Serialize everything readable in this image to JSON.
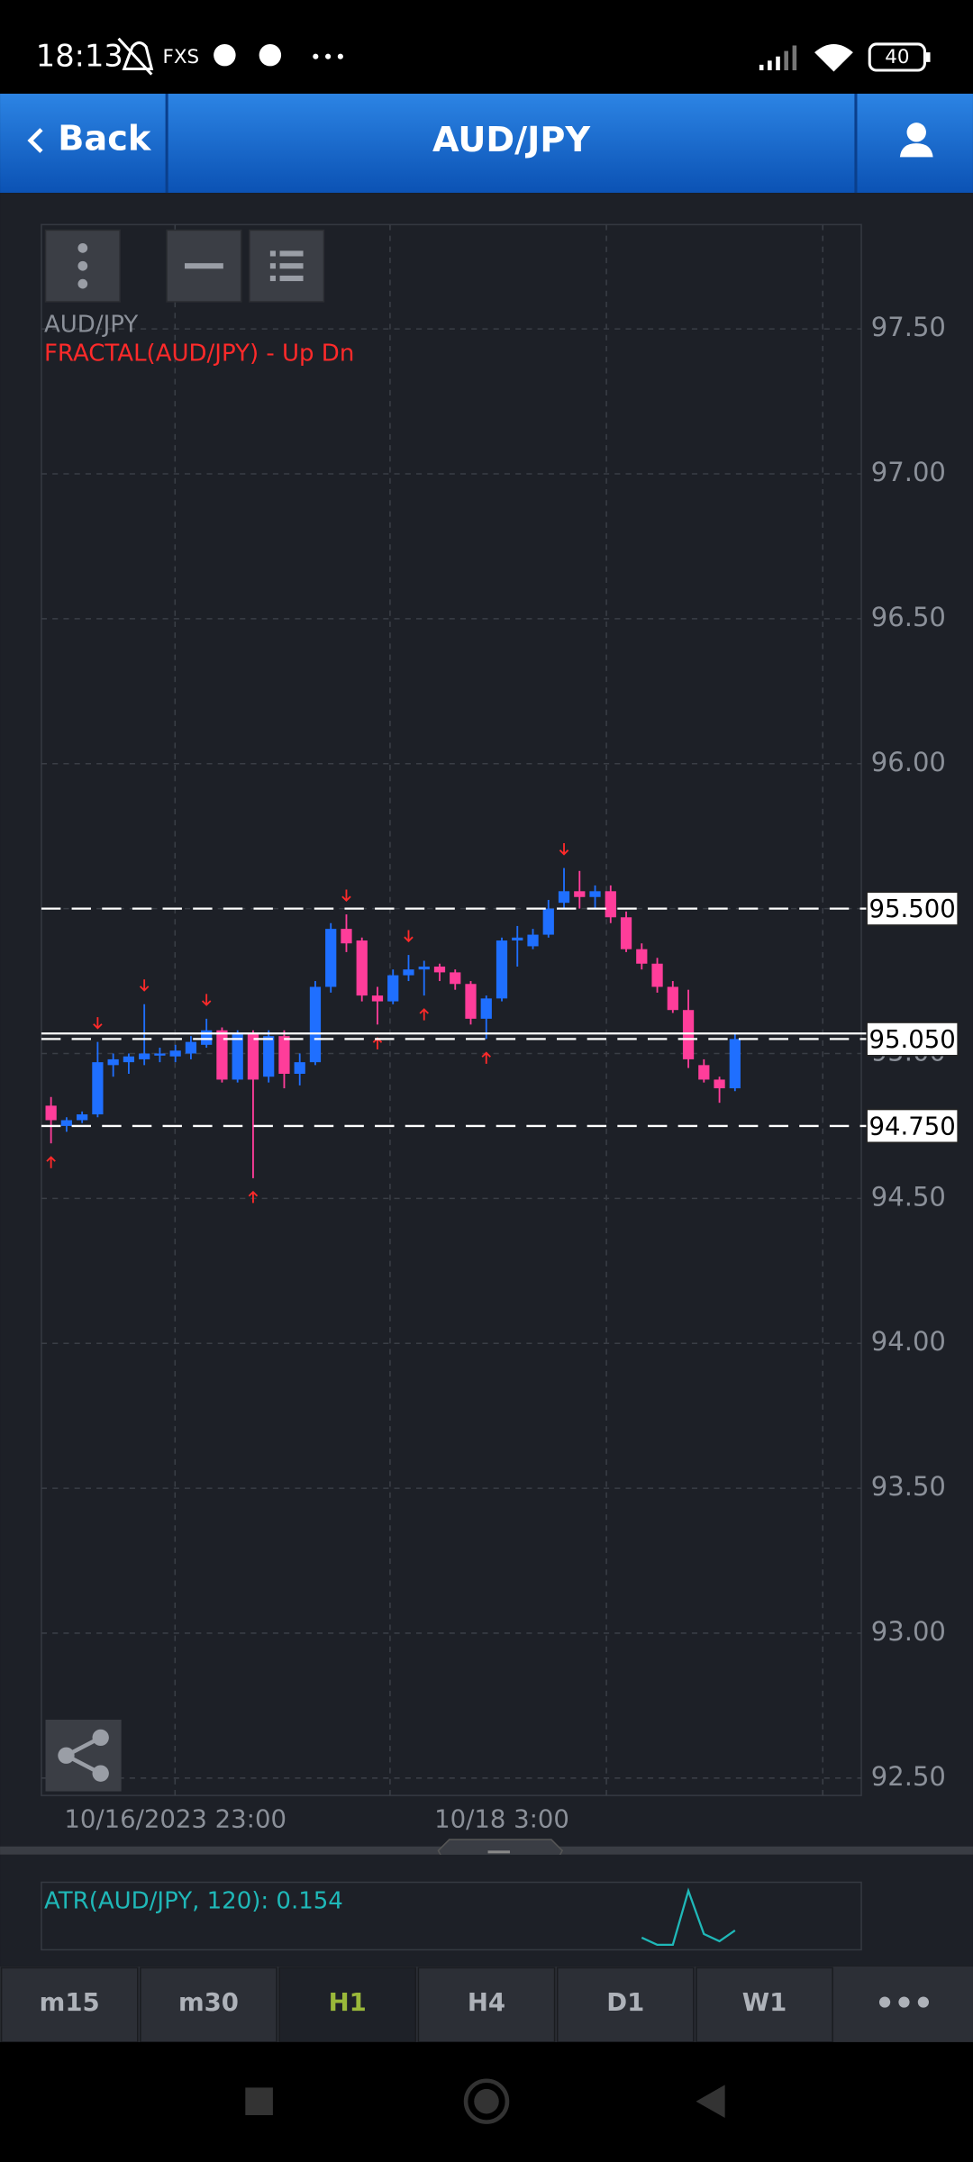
{
  "status_bar": {
    "time": "18:13",
    "carrier": "FXS",
    "battery": "40"
  },
  "header": {
    "back": "Back",
    "title": "AUD/JPY"
  },
  "chart_data": {
    "type": "candlestick",
    "symbol": "AUD/JPY",
    "indicator": "FRACTAL(AUD/JPY) - Up Dn",
    "categories": [
      null,
      null,
      null,
      null,
      null,
      null,
      null,
      null,
      "10/16/2023 23:00",
      null,
      null,
      null,
      null,
      null,
      null,
      null,
      null,
      null,
      null,
      null,
      null,
      null,
      null,
      null,
      null,
      null,
      null,
      null,
      null,
      "10/18 3:00",
      null,
      null,
      null,
      null,
      null,
      null,
      null,
      null,
      null,
      null,
      null,
      null,
      null,
      null,
      null
    ],
    "open": [
      94.82,
      94.75,
      94.77,
      94.79,
      94.96,
      94.97,
      94.98,
      95.0,
      94.99,
      95.0,
      95.03,
      95.08,
      94.91,
      95.07,
      94.92,
      95.06,
      94.93,
      94.97,
      95.23,
      95.43,
      95.39,
      95.2,
      95.18,
      95.27,
      95.29,
      95.3,
      95.28,
      95.24,
      95.12,
      95.19,
      95.39,
      95.37,
      95.41,
      95.52,
      95.56,
      95.54,
      95.56,
      95.47,
      95.36,
      95.31,
      95.23,
      95.15,
      94.96,
      94.91,
      94.88
    ],
    "high": [
      94.85,
      94.78,
      94.8,
      95.04,
      95.0,
      95.0,
      95.17,
      95.02,
      95.03,
      95.06,
      95.12,
      95.09,
      95.08,
      95.08,
      95.08,
      95.08,
      95.0,
      95.25,
      95.45,
      95.48,
      95.4,
      95.23,
      95.29,
      95.34,
      95.32,
      95.31,
      95.29,
      95.25,
      95.2,
      95.4,
      95.44,
      95.43,
      95.53,
      95.64,
      95.63,
      95.58,
      95.58,
      95.49,
      95.38,
      95.33,
      95.25,
      95.22,
      94.98,
      94.92,
      95.07
    ],
    "low": [
      94.69,
      94.73,
      94.76,
      94.78,
      94.92,
      94.93,
      94.96,
      94.97,
      94.97,
      94.98,
      95.02,
      94.9,
      94.9,
      94.57,
      94.9,
      94.88,
      94.89,
      94.96,
      95.21,
      95.35,
      95.18,
      95.1,
      95.17,
      95.25,
      95.2,
      95.25,
      95.22,
      95.1,
      95.05,
      95.18,
      95.3,
      95.36,
      95.4,
      95.5,
      95.5,
      95.5,
      95.45,
      95.35,
      95.29,
      95.21,
      95.14,
      94.95,
      94.9,
      94.83,
      94.87
    ],
    "close": [
      94.77,
      94.77,
      94.79,
      94.97,
      94.98,
      94.99,
      95.0,
      95.0,
      95.01,
      95.04,
      95.08,
      94.91,
      95.07,
      94.91,
      95.06,
      94.93,
      94.97,
      95.23,
      95.43,
      95.38,
      95.2,
      95.18,
      95.27,
      95.29,
      95.3,
      95.28,
      95.24,
      95.12,
      95.19,
      95.39,
      95.4,
      95.41,
      95.5,
      95.56,
      95.54,
      95.56,
      95.47,
      95.36,
      95.31,
      95.23,
      95.15,
      94.98,
      94.91,
      94.88,
      95.05
    ],
    "fractal_down": [
      null,
      null,
      null,
      95.04,
      null,
      null,
      95.17,
      null,
      null,
      null,
      95.12,
      null,
      null,
      null,
      null,
      null,
      null,
      null,
      null,
      95.48,
      null,
      null,
      null,
      95.34,
      null,
      null,
      null,
      null,
      null,
      null,
      null,
      null,
      null,
      95.64,
      null,
      null,
      null,
      null,
      null,
      null,
      null,
      null,
      null,
      null,
      null
    ],
    "fractal_up": [
      94.69,
      null,
      null,
      null,
      null,
      null,
      null,
      null,
      null,
      null,
      null,
      null,
      null,
      94.57,
      null,
      null,
      null,
      null,
      null,
      null,
      null,
      95.1,
      null,
      null,
      95.2,
      null,
      null,
      null,
      95.05,
      null,
      null,
      null,
      null,
      null,
      null,
      null,
      null,
      null,
      null,
      null,
      null,
      null,
      null,
      null,
      null
    ],
    "up_color": "#1f6fff",
    "down_color": "#ff3d9a",
    "fractal_color": "#ff2a2a",
    "ylim": [
      92.44,
      97.86
    ],
    "yticks": [
      {
        "value": 92.5,
        "label": "92.50"
      },
      {
        "value": 93,
        "label": "93.00"
      },
      {
        "value": 93.5,
        "label": "93.50"
      },
      {
        "value": 94,
        "label": "94.00"
      },
      {
        "value": 94.5,
        "label": "94.50"
      },
      {
        "value": 95,
        "label": "95.00"
      },
      {
        "value": 95.5,
        "label": "95.50"
      },
      {
        "value": 96,
        "label": "96.00"
      },
      {
        "value": 96.5,
        "label": "96.50"
      },
      {
        "value": 97,
        "label": "97.00"
      },
      {
        "value": 97.5,
        "label": "97.50"
      }
    ],
    "hlines": [
      {
        "value": 95.5,
        "label": "95.500"
      },
      {
        "value": 95.05,
        "label": "95.050"
      },
      {
        "value": 94.75,
        "label": "94.750"
      }
    ],
    "grid": true
  },
  "atr": {
    "type": "line",
    "label": "ATR(AUD/JPY, 120): 0.154",
    "values": [
      0.12,
      0.1,
      0.1,
      0.25,
      0.13,
      0.11,
      0.14
    ],
    "ylim": [
      0.09,
      0.27
    ],
    "color": "#1fb8b8"
  },
  "tabs": [
    "m15",
    "m30",
    "H1",
    "H4",
    "D1",
    "W1"
  ],
  "selected_tab": 2
}
